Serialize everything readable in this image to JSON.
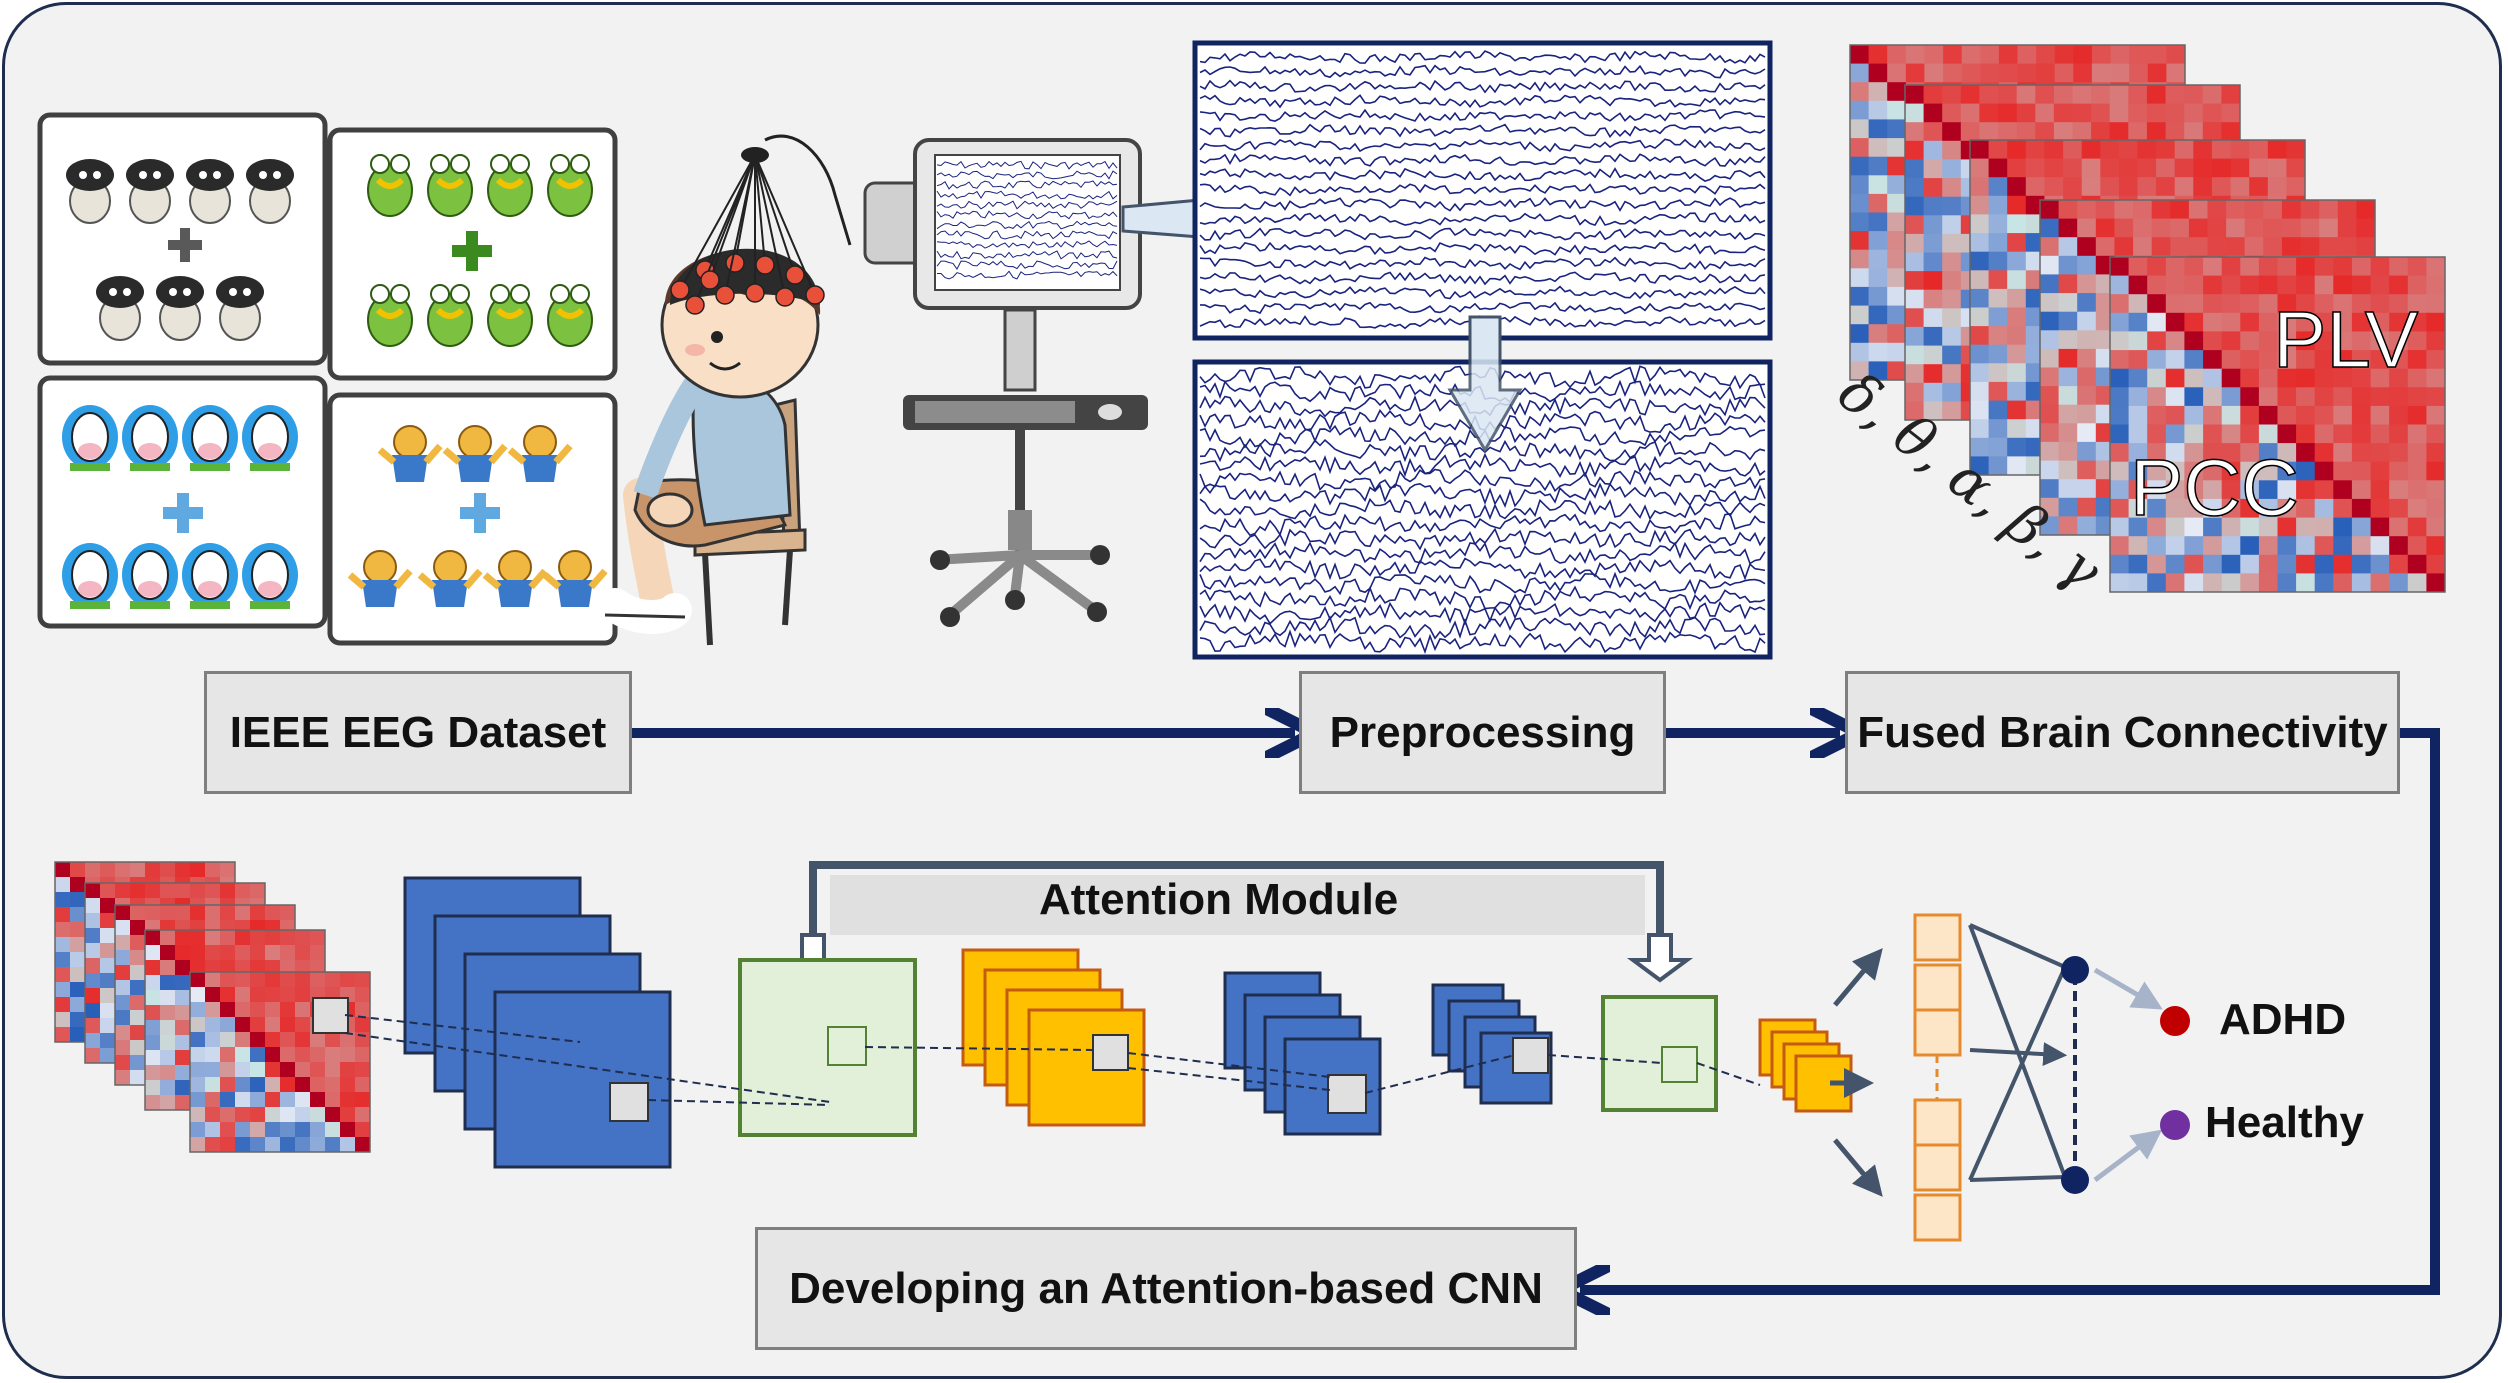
{
  "pipeline": {
    "dataset_label": "IEEE EEG Dataset",
    "preprocessing_label": "Preprocessing",
    "connectivity_label": "Fused Brain Connectivity",
    "cnn_label": "Developing an Attention-based CNN"
  },
  "connectivity": {
    "upper_metric": "PLV",
    "lower_metric": "PCC",
    "bands": "δ, θ, α, β, γ"
  },
  "network": {
    "attention_label": "Attention Module",
    "classes": [
      "ADHD",
      "Healthy"
    ]
  },
  "colors": {
    "frame": "#1f2d4f",
    "arrow": "#0f2461",
    "eeg_trace": "#1a237e",
    "conv_blue": "#4472c4",
    "conv_orange": "#ffc000",
    "attention_green": "#e2efd9",
    "adhd_dot": "#c00000",
    "healthy_dot": "#7030a0"
  },
  "icons": [
    "sheep-icon",
    "frog-icon",
    "cow-icon",
    "bear-icon",
    "child-with-eeg-cap-icon",
    "computer-monitor-icon"
  ]
}
